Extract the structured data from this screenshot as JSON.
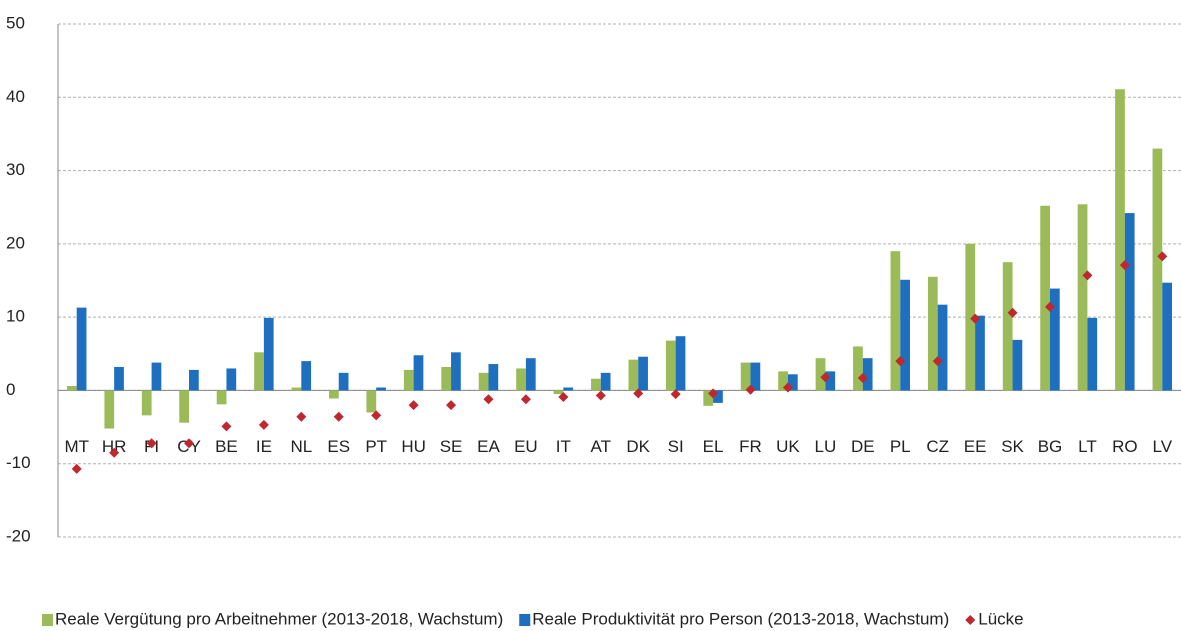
{
  "chart_data": {
    "type": "bar",
    "categories": [
      "MT",
      "HR",
      "FI",
      "CY",
      "BE",
      "IE",
      "NL",
      "ES",
      "PT",
      "HU",
      "SE",
      "EA",
      "EU",
      "IT",
      "AT",
      "DK",
      "SI",
      "EL",
      "FR",
      "UK",
      "LU",
      "DE",
      "PL",
      "CZ",
      "EE",
      "SK",
      "BG",
      "LT",
      "RO",
      "LV"
    ],
    "series": [
      {
        "name": "Reale Vergütung pro Arbeitnehmer (2013-2018, Wachstum)",
        "color": "#9bbb59",
        "type": "bar",
        "values": [
          0.6,
          -5.2,
          -3.4,
          -4.4,
          -1.9,
          5.2,
          0.4,
          -1.1,
          -3.0,
          2.8,
          3.2,
          2.4,
          3.0,
          -0.5,
          1.6,
          4.2,
          6.8,
          -2.1,
          3.8,
          2.6,
          4.4,
          6.0,
          19.0,
          15.5,
          20.0,
          17.5,
          25.2,
          25.4,
          41.1,
          33.0
        ]
      },
      {
        "name": "Reale Produktivität pro Person (2013-2018, Wachstum)",
        "color": "#1f6fc0",
        "type": "bar",
        "values": [
          11.3,
          3.2,
          3.8,
          2.8,
          3.0,
          9.9,
          4.0,
          2.4,
          0.4,
          4.8,
          5.2,
          3.6,
          4.4,
          0.4,
          2.4,
          4.6,
          7.4,
          -1.7,
          3.8,
          2.2,
          2.6,
          4.4,
          15.1,
          11.7,
          10.2,
          6.9,
          13.9,
          9.9,
          24.2,
          14.7
        ]
      },
      {
        "name": "Lücke",
        "color": "#c0282d",
        "type": "scatter",
        "values": [
          -10.7,
          -8.5,
          -7.2,
          -7.2,
          -4.9,
          -4.7,
          -3.6,
          -3.6,
          -3.4,
          -2.0,
          -2.0,
          -1.2,
          -1.2,
          -0.9,
          -0.7,
          -0.4,
          -0.5,
          -0.4,
          0.1,
          0.4,
          1.8,
          1.7,
          4.0,
          4.0,
          9.8,
          10.6,
          11.4,
          15.7,
          17.1,
          18.3
        ]
      }
    ],
    "ylim": [
      -20,
      50
    ],
    "yticks": [
      -20,
      -10,
      0,
      10,
      20,
      30,
      40,
      50
    ],
    "grid": true,
    "legend": "bottom"
  }
}
